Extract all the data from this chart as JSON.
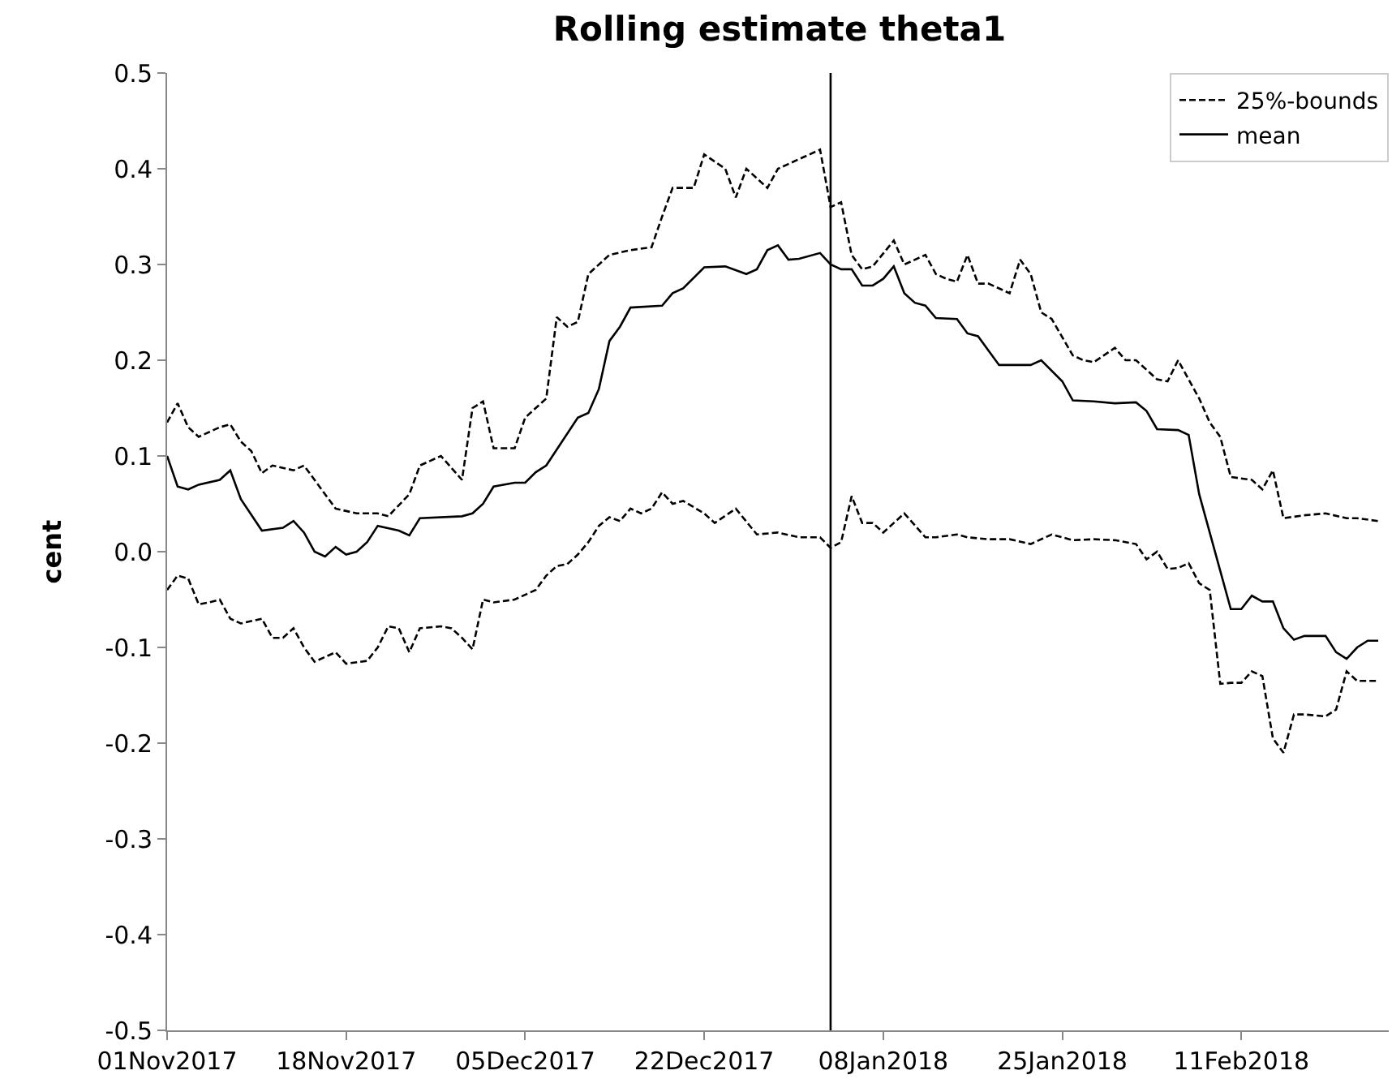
{
  "chart_data": {
    "type": "line",
    "title": "Rolling estimate theta1",
    "ylabel": "cent",
    "legend": "top right",
    "marker": "none",
    "xlim": [
      "2017-11-01",
      "2018-02-25"
    ],
    "xticks": [
      {
        "value": "2017-11-01",
        "label": "01Nov2017"
      },
      {
        "value": "2017-11-18",
        "label": "18Nov2017"
      },
      {
        "value": "2017-12-05",
        "label": "05Dec2017"
      },
      {
        "value": "2017-12-22",
        "label": "22Dec2017"
      },
      {
        "value": "2018-01-08",
        "label": "08Jan2018"
      },
      {
        "value": "2018-01-25",
        "label": "25Jan2018"
      },
      {
        "value": "2018-02-11",
        "label": "11Feb2018"
      }
    ],
    "ylim": [
      -0.5,
      0.5
    ],
    "yticks": [
      -0.5,
      -0.4,
      -0.3,
      -0.2,
      -0.1,
      {
        "value": 0,
        "label": "0.0"
      },
      0.1,
      0.2,
      0.3,
      0.4,
      0.5
    ],
    "ref_lines": [
      {
        "axis": "x",
        "value": "2018-01-03",
        "color": "#000000",
        "line_style": "solid"
      }
    ],
    "series": [
      {
        "name": "25%-bounds",
        "color": "#000000",
        "line_style": "dashed",
        "x": [
          "2017-11-01",
          "2017-11-02",
          "2017-11-03",
          "2017-11-04",
          "2017-11-06",
          "2017-11-07",
          "2017-11-08",
          "2017-11-09",
          "2017-11-10",
          "2017-11-11",
          "2017-11-13",
          "2017-11-14",
          "2017-11-16",
          "2017-11-17",
          "2017-11-19",
          "2017-11-21",
          "2017-11-22",
          "2017-11-24",
          "2017-11-25",
          "2017-11-27",
          "2017-11-29",
          "2017-11-30",
          "2017-12-01",
          "2017-12-02",
          "2017-12-04",
          "2017-12-05",
          "2017-12-07",
          "2017-12-08",
          "2017-12-09",
          "2017-12-10",
          "2017-12-11",
          "2017-12-13",
          "2017-12-15",
          "2017-12-17",
          "2017-12-18",
          "2017-12-19",
          "2017-12-21",
          "2017-12-22",
          "2017-12-24",
          "2017-12-25",
          "2017-12-26",
          "2017-12-28",
          "2017-12-29",
          "2017-12-30",
          "2018-01-02",
          "2018-01-03",
          "2018-01-04",
          "2018-01-05",
          "2018-01-06",
          "2018-01-07",
          "2018-01-09",
          "2018-01-10",
          "2018-01-12",
          "2018-01-13",
          "2018-01-14",
          "2018-01-15",
          "2018-01-16",
          "2018-01-17",
          "2018-01-18",
          "2018-01-20",
          "2018-01-21",
          "2018-01-22",
          "2018-01-23",
          "2018-01-24",
          "2018-01-26",
          "2018-01-27",
          "2018-01-28",
          "2018-01-30",
          "2018-01-31",
          "2018-02-01",
          "2018-02-03",
          "2018-02-04",
          "2018-02-05",
          "2018-02-06",
          "2018-02-07",
          "2018-02-08",
          "2018-02-09",
          "2018-02-10",
          "2018-02-12",
          "2018-02-13",
          "2018-02-14",
          "2018-02-15",
          "2018-02-17",
          "2018-02-19",
          "2018-02-21",
          "2018-02-22",
          "2018-02-24"
        ],
        "values": [
          0.135,
          0.155,
          0.13,
          0.12,
          0.13,
          0.133,
          0.115,
          0.105,
          0.082,
          0.09,
          0.085,
          0.09,
          0.06,
          0.045,
          0.04,
          0.04,
          0.037,
          0.06,
          0.09,
          0.1,
          0.075,
          0.15,
          0.157,
          0.108,
          0.108,
          0.14,
          0.16,
          0.245,
          0.235,
          0.24,
          0.29,
          0.31,
          0.315,
          0.318,
          0.35,
          0.38,
          0.38,
          0.415,
          0.4,
          0.37,
          0.4,
          0.38,
          0.4,
          0.405,
          0.42,
          0.36,
          0.365,
          0.31,
          0.295,
          0.298,
          0.325,
          0.3,
          0.31,
          0.29,
          0.285,
          0.282,
          0.31,
          0.28,
          0.28,
          0.27,
          0.305,
          0.29,
          0.25,
          0.243,
          0.205,
          0.2,
          0.198,
          0.213,
          0.2,
          0.2,
          0.18,
          0.178,
          0.2,
          0.18,
          0.16,
          0.135,
          0.12,
          0.078,
          0.075,
          0.065,
          0.085,
          0.035,
          0.038,
          0.04,
          0.035,
          0.035,
          0.032
        ]
      },
      {
        "name": "mean",
        "color": "#000000",
        "line_style": "solid",
        "x": [
          "2017-11-01",
          "2017-11-02",
          "2017-11-03",
          "2017-11-04",
          "2017-11-06",
          "2017-11-07",
          "2017-11-08",
          "2017-11-10",
          "2017-11-12",
          "2017-11-13",
          "2017-11-14",
          "2017-11-15",
          "2017-11-16",
          "2017-11-17",
          "2017-11-18",
          "2017-11-19",
          "2017-11-20",
          "2017-11-21",
          "2017-11-23",
          "2017-11-24",
          "2017-11-25",
          "2017-11-29",
          "2017-11-30",
          "2017-12-01",
          "2017-12-02",
          "2017-12-04",
          "2017-12-05",
          "2017-12-06",
          "2017-12-07",
          "2017-12-10",
          "2017-12-11",
          "2017-12-12",
          "2017-12-13",
          "2017-12-14",
          "2017-12-15",
          "2017-12-18",
          "2017-12-19",
          "2017-12-20",
          "2017-12-22",
          "2017-12-24",
          "2017-12-26",
          "2017-12-27",
          "2017-12-28",
          "2017-12-29",
          "2017-12-30",
          "2017-12-31",
          "2018-01-02",
          "2018-01-03",
          "2018-01-04",
          "2018-01-05",
          "2018-01-06",
          "2018-01-07",
          "2018-01-08",
          "2018-01-09",
          "2018-01-10",
          "2018-01-11",
          "2018-01-12",
          "2018-01-13",
          "2018-01-15",
          "2018-01-16",
          "2018-01-17",
          "2018-01-18",
          "2018-01-19",
          "2018-01-20",
          "2018-01-22",
          "2018-01-23",
          "2018-01-25",
          "2018-01-26",
          "2018-01-28",
          "2018-01-30",
          "2018-02-01",
          "2018-02-02",
          "2018-02-03",
          "2018-02-05",
          "2018-02-06",
          "2018-02-07",
          "2018-02-08",
          "2018-02-09",
          "2018-02-10",
          "2018-02-11",
          "2018-02-12",
          "2018-02-13",
          "2018-02-14",
          "2018-02-15",
          "2018-02-16",
          "2018-02-17",
          "2018-02-19",
          "2018-02-20",
          "2018-02-21",
          "2018-02-22",
          "2018-02-23",
          "2018-02-24"
        ],
        "values": [
          0.1,
          0.068,
          0.065,
          0.07,
          0.075,
          0.085,
          0.055,
          0.022,
          0.025,
          0.032,
          0.02,
          0.0,
          -0.005,
          0.005,
          -0.003,
          0.0,
          0.01,
          0.027,
          0.022,
          0.017,
          0.035,
          0.037,
          0.04,
          0.05,
          0.068,
          0.072,
          0.072,
          0.083,
          0.09,
          0.14,
          0.145,
          0.17,
          0.22,
          0.235,
          0.255,
          0.257,
          0.27,
          0.275,
          0.297,
          0.298,
          0.29,
          0.295,
          0.315,
          0.32,
          0.305,
          0.306,
          0.312,
          0.3,
          0.295,
          0.295,
          0.278,
          0.278,
          0.285,
          0.298,
          0.27,
          0.26,
          0.257,
          0.244,
          0.243,
          0.228,
          0.225,
          0.21,
          0.195,
          0.195,
          0.195,
          0.2,
          0.178,
          0.158,
          0.157,
          0.155,
          0.156,
          0.147,
          0.128,
          0.127,
          0.122,
          0.06,
          0.02,
          -0.02,
          -0.06,
          -0.06,
          -0.046,
          -0.052,
          -0.052,
          -0.08,
          -0.092,
          -0.088,
          -0.088,
          -0.105,
          -0.112,
          -0.1,
          -0.093,
          -0.093
        ]
      },
      {
        "color": "#000000",
        "line_style": "dashed",
        "x": [
          "2017-11-01",
          "2017-11-02",
          "2017-11-03",
          "2017-11-04",
          "2017-11-05",
          "2017-11-06",
          "2017-11-07",
          "2017-11-08",
          "2017-11-10",
          "2017-11-11",
          "2017-11-12",
          "2017-11-13",
          "2017-11-14",
          "2017-11-15",
          "2017-11-17",
          "2017-11-18",
          "2017-11-20",
          "2017-11-21",
          "2017-11-22",
          "2017-11-23",
          "2017-11-24",
          "2017-11-25",
          "2017-11-27",
          "2017-11-28",
          "2017-11-29",
          "2017-11-30",
          "2017-12-01",
          "2017-12-02",
          "2017-12-04",
          "2017-12-06",
          "2017-12-07",
          "2017-12-08",
          "2017-12-09",
          "2017-12-10",
          "2017-12-11",
          "2017-12-12",
          "2017-12-13",
          "2017-12-14",
          "2017-12-15",
          "2017-12-16",
          "2017-12-17",
          "2017-12-18",
          "2017-12-19",
          "2017-12-20",
          "2017-12-22",
          "2017-12-23",
          "2017-12-25",
          "2017-12-27",
          "2017-12-29",
          "2017-12-31",
          "2018-01-02",
          "2018-01-03",
          "2018-01-04",
          "2018-01-05",
          "2018-01-06",
          "2018-01-07",
          "2018-01-08",
          "2018-01-09",
          "2018-01-10",
          "2018-01-12",
          "2018-01-13",
          "2018-01-15",
          "2018-01-16",
          "2018-01-18",
          "2018-01-20",
          "2018-01-22",
          "2018-01-24",
          "2018-01-26",
          "2018-01-28",
          "2018-01-30",
          "2018-02-01",
          "2018-02-02",
          "2018-02-03",
          "2018-02-04",
          "2018-02-05",
          "2018-02-06",
          "2018-02-07",
          "2018-02-08",
          "2018-02-09",
          "2018-02-10",
          "2018-02-11",
          "2018-02-12",
          "2018-02-13",
          "2018-02-14",
          "2018-02-15",
          "2018-02-16",
          "2018-02-17",
          "2018-02-19",
          "2018-02-20",
          "2018-02-21",
          "2018-02-22",
          "2018-02-24"
        ],
        "values": [
          -0.04,
          -0.025,
          -0.028,
          -0.055,
          -0.053,
          -0.05,
          -0.07,
          -0.075,
          -0.07,
          -0.09,
          -0.09,
          -0.08,
          -0.1,
          -0.115,
          -0.105,
          -0.117,
          -0.114,
          -0.1,
          -0.078,
          -0.08,
          -0.105,
          -0.08,
          -0.078,
          -0.08,
          -0.09,
          -0.102,
          -0.05,
          -0.053,
          -0.05,
          -0.04,
          -0.025,
          -0.015,
          -0.013,
          -0.003,
          0.01,
          0.027,
          0.036,
          0.032,
          0.045,
          0.04,
          0.045,
          0.062,
          0.05,
          0.053,
          0.04,
          0.03,
          0.045,
          0.018,
          0.02,
          0.015,
          0.015,
          0.004,
          0.01,
          0.058,
          0.03,
          0.03,
          0.02,
          0.03,
          0.04,
          0.015,
          0.015,
          0.018,
          0.015,
          0.013,
          0.013,
          0.008,
          0.018,
          0.012,
          0.013,
          0.012,
          0.008,
          -0.008,
          0.0,
          -0.018,
          -0.017,
          -0.012,
          -0.033,
          -0.04,
          -0.138,
          -0.137,
          -0.137,
          -0.125,
          -0.13,
          -0.195,
          -0.21,
          -0.17,
          -0.17,
          -0.172,
          -0.165,
          -0.125,
          -0.135,
          -0.135
        ]
      }
    ]
  }
}
